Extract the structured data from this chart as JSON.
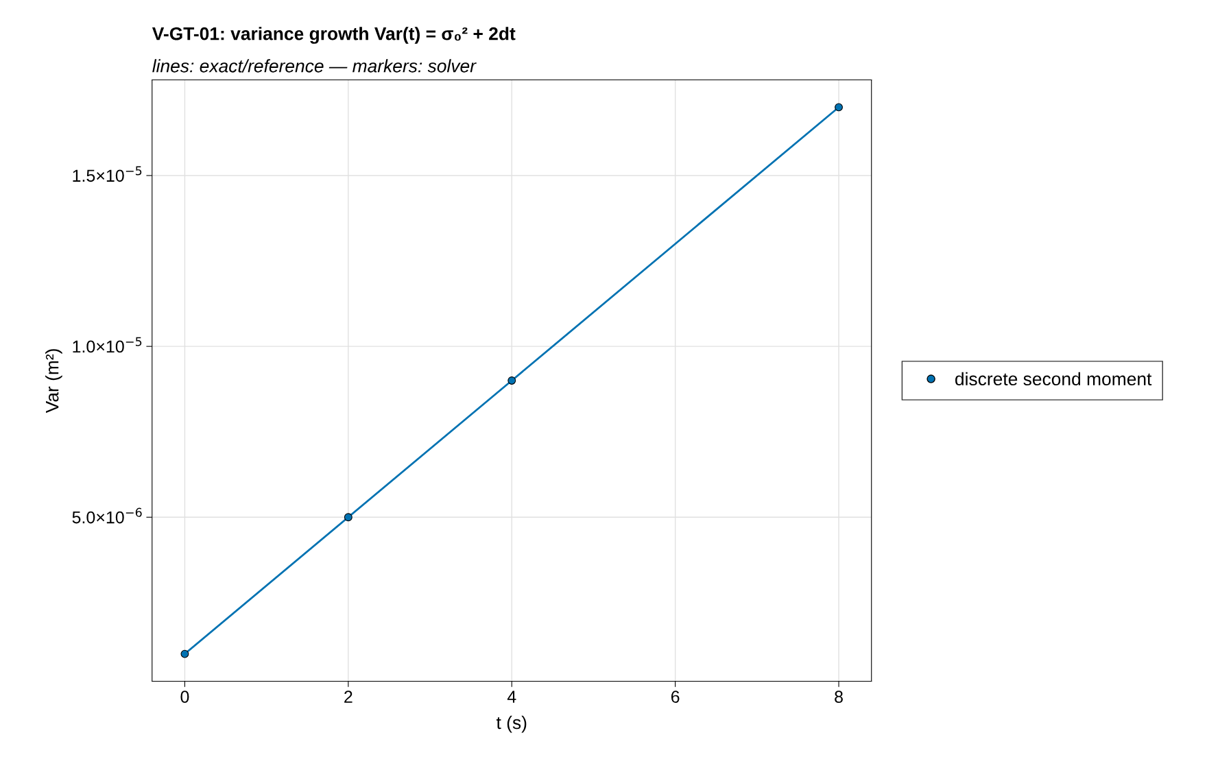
{
  "chart_data": {
    "type": "line",
    "title": "V-GT-01: variance growth Var(t) = σ₀² + 2dt",
    "subtitle": "lines: exact/reference — markers: solver",
    "xlabel": "t (s)",
    "ylabel": "Var (m²)",
    "series": [
      {
        "color": "#0072b2",
        "x": [
          0,
          2,
          4,
          8
        ],
        "values": [
          1e-06,
          5e-06,
          9e-06,
          1.7e-05
        ],
        "marker": "none",
        "line_style": "solid"
      },
      {
        "type": "scatter",
        "name": "discrete second moment",
        "color": "#0072b2",
        "x": [
          0,
          2,
          4,
          8
        ],
        "values": [
          1e-06,
          5e-06,
          9e-06,
          1.7e-05
        ],
        "marker": "circle"
      }
    ],
    "xlim": [
      -0.4,
      8.4
    ],
    "xticks": [
      0,
      2,
      4,
      6,
      8
    ],
    "ylim": [
      2e-07,
      1.78e-05
    ],
    "yticks": [
      {
        "value": 5e-06,
        "label": "5.0×10$^{−6}$"
      },
      {
        "value": 1e-05,
        "label": "1.0×10$^{−5}$"
      },
      {
        "value": 1.5e-05,
        "label": "1.5×10$^{−5}$"
      }
    ],
    "grid": true,
    "legend": "right"
  }
}
